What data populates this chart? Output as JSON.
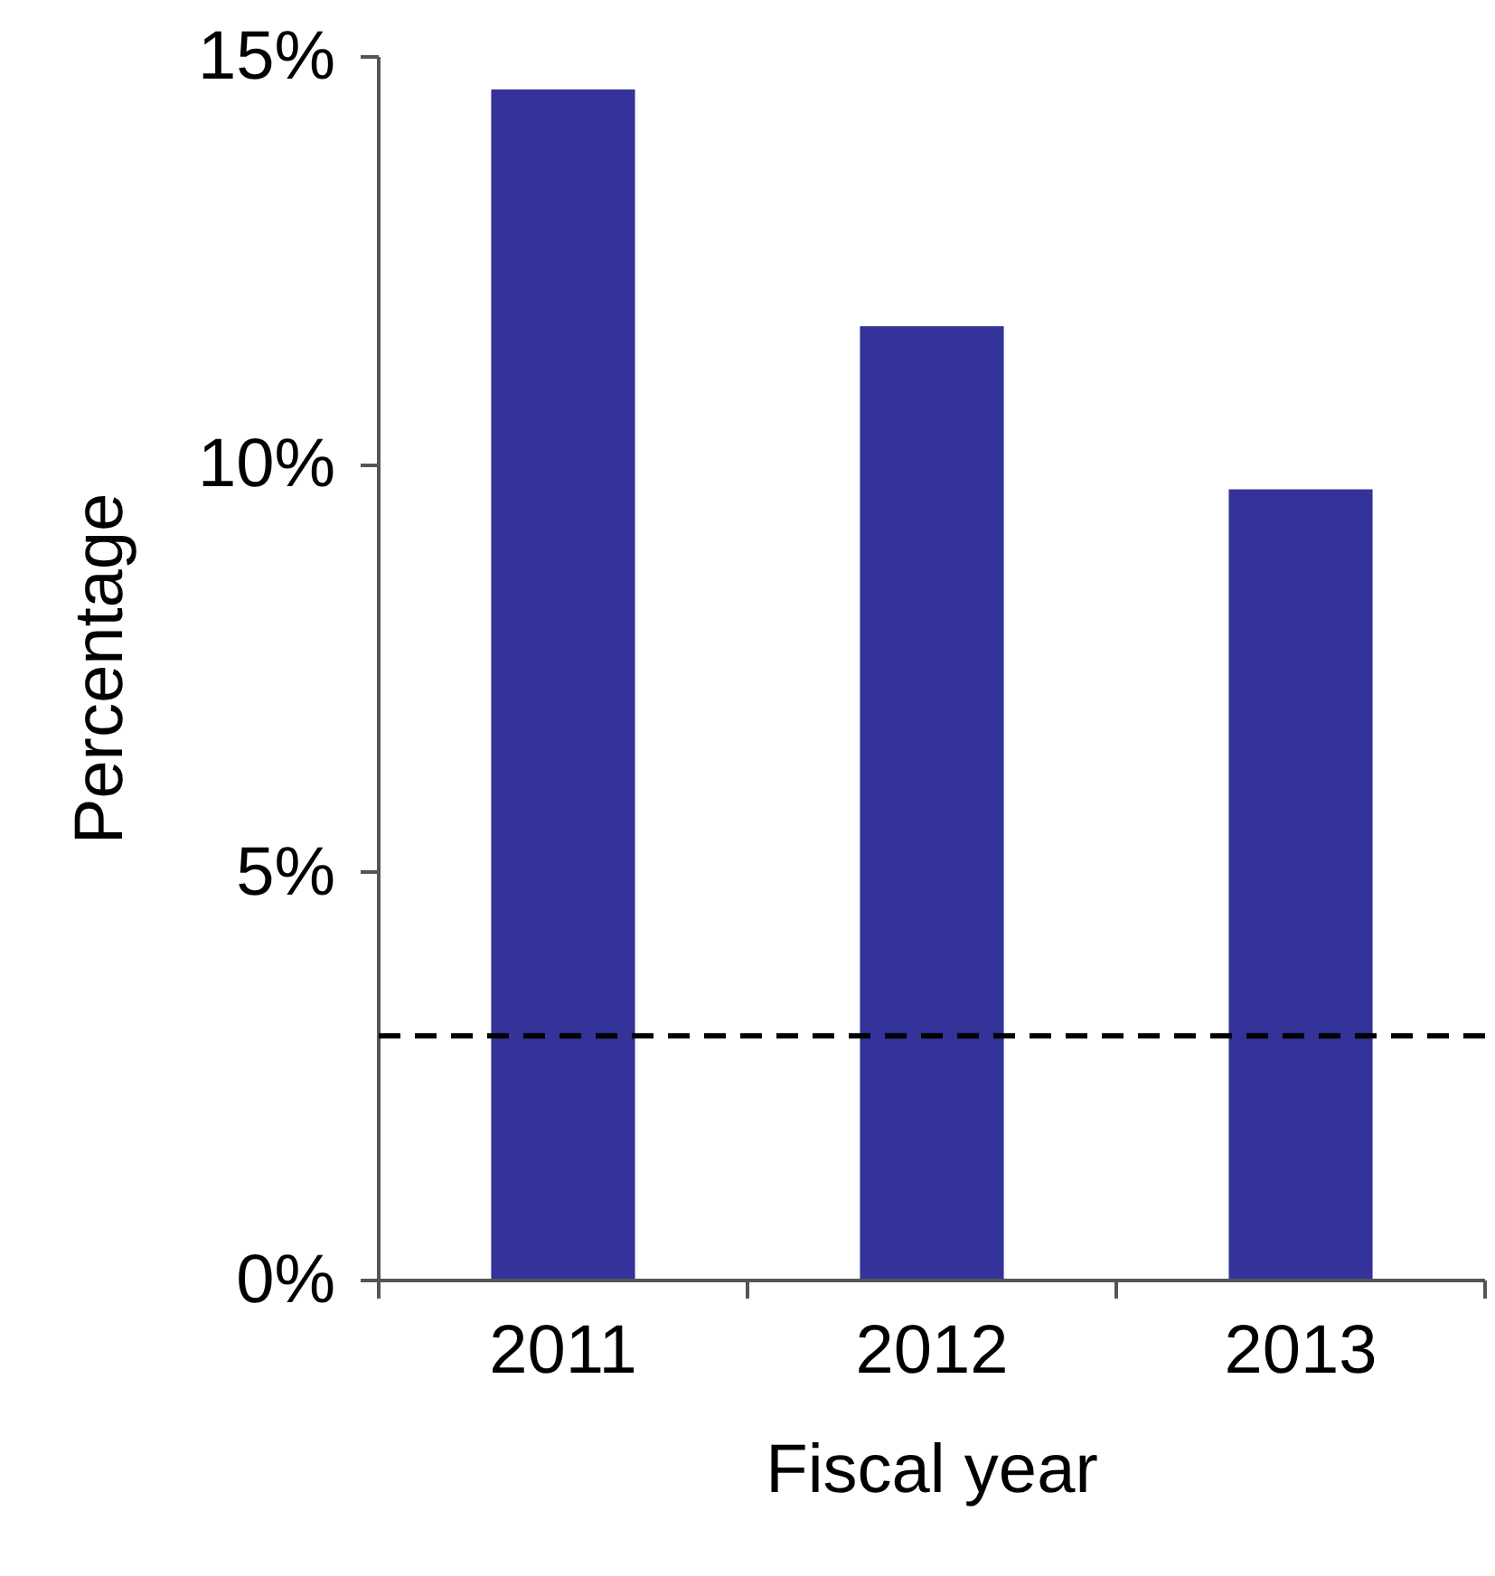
{
  "chart_data": {
    "type": "bar",
    "xlabel": "Fiscal year",
    "ylabel": "Percentage",
    "categories": [
      "2011",
      "2012",
      "2013"
    ],
    "values": [
      14.6,
      11.7,
      9.7
    ],
    "color": "#333399",
    "ylim": [
      0,
      15
    ],
    "yticks": [
      {
        "value": 0,
        "label": "0%"
      },
      {
        "value": 5,
        "label": "5%"
      },
      {
        "value": 10,
        "label": "10%"
      },
      {
        "value": 15,
        "label": "15%"
      }
    ],
    "ref_lines": [
      {
        "axis": "y",
        "value": 3,
        "label": null,
        "color": "#000000",
        "line_style": "dashed"
      }
    ]
  }
}
